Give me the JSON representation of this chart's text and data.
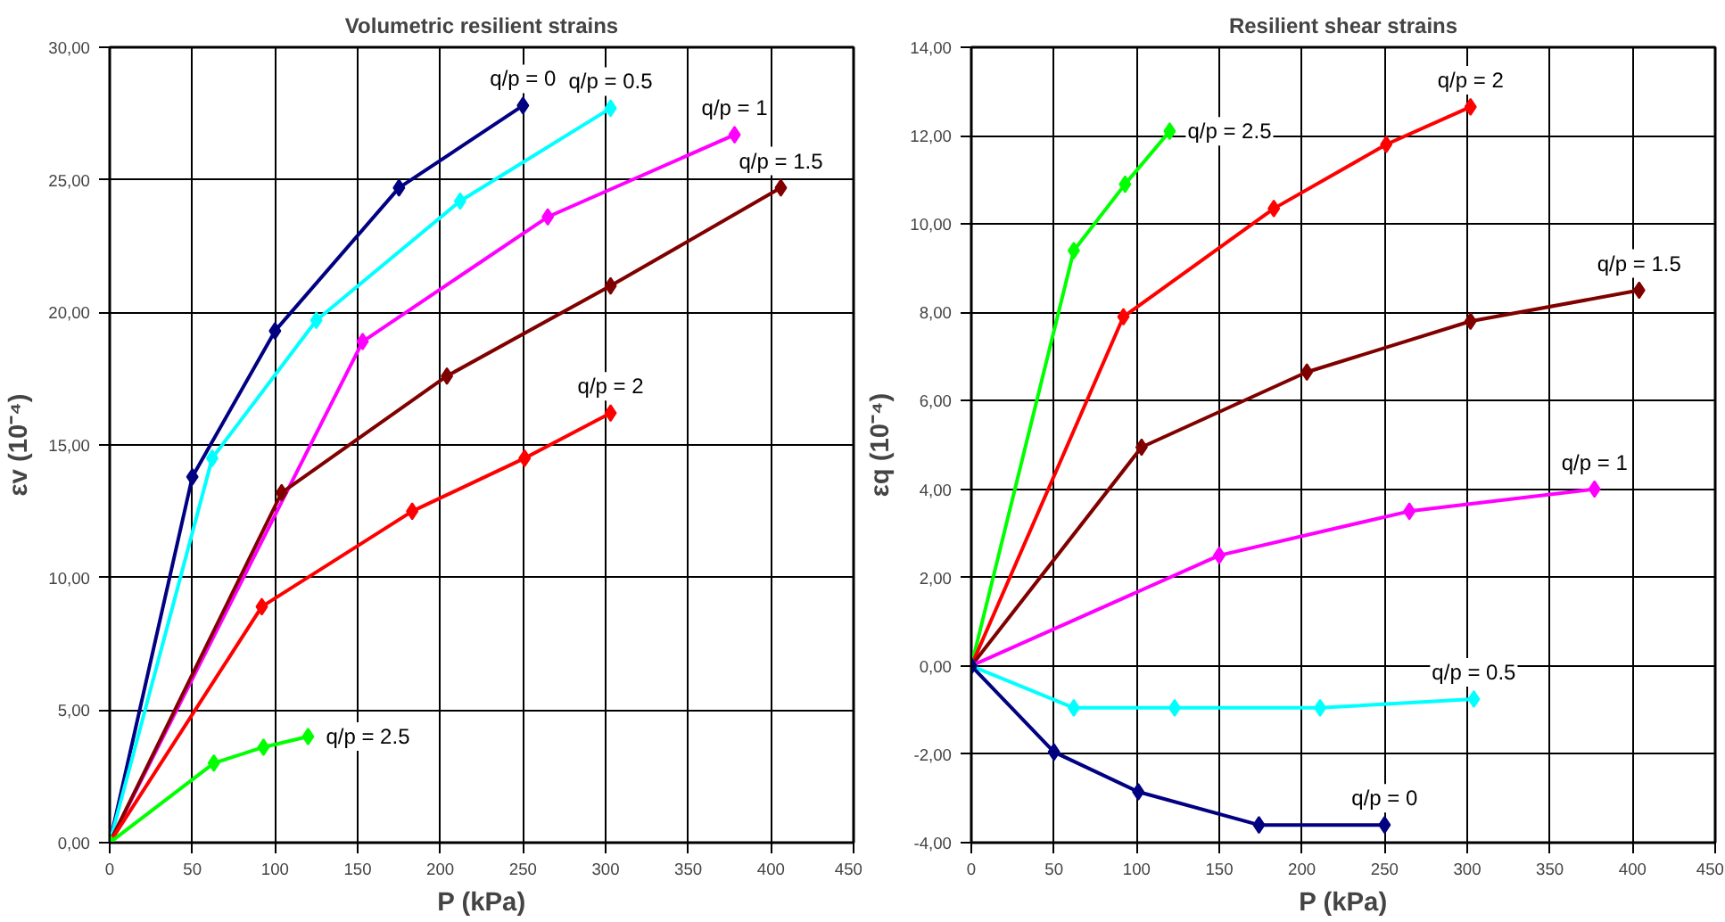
{
  "chart_data": [
    {
      "type": "line",
      "title": "Volumetric resilient strains",
      "xlabel": "P (kPa)",
      "ylabel": "εv (10⁻⁴)",
      "marker": "diamond",
      "grid": true,
      "legend": false,
      "xlim": [
        0,
        450
      ],
      "xticks": [
        0,
        50,
        100,
        150,
        200,
        250,
        300,
        350,
        400,
        450
      ],
      "ylim": [
        0,
        30
      ],
      "yticks": [
        {
          "value": 0,
          "label": "0,00"
        },
        {
          "value": 5,
          "label": "5,00"
        },
        {
          "value": 10,
          "label": "10,00"
        },
        {
          "value": 15,
          "label": "15,00"
        },
        {
          "value": 20,
          "label": "20,00"
        },
        {
          "value": 25,
          "label": "25,00"
        },
        {
          "value": 30,
          "label": "30,00"
        }
      ],
      "series": [
        {
          "name": "q/p = 0",
          "color": "#000080",
          "x": [
            0,
            50,
            100,
            175,
            250
          ],
          "values": [
            0,
            13.8,
            19.3,
            24.7,
            27.8
          ]
        },
        {
          "name": "q/p = 0.5",
          "color": "#00ffff",
          "x": [
            0,
            62,
            125,
            212,
            303
          ],
          "values": [
            0,
            14.5,
            19.7,
            24.2,
            27.7
          ]
        },
        {
          "name": "q/p = 1",
          "color": "#ff00ff",
          "x": [
            0,
            153,
            265,
            378
          ],
          "values": [
            0,
            18.9,
            23.6,
            26.7
          ]
        },
        {
          "name": "q/p = 1.5",
          "color": "#800000",
          "x": [
            0,
            104,
            204,
            303,
            406
          ],
          "values": [
            0,
            13.2,
            17.6,
            21.0,
            24.7
          ]
        },
        {
          "name": "q/p = 2",
          "color": "#ff0000",
          "x": [
            0,
            92,
            183,
            251,
            303
          ],
          "values": [
            0,
            8.9,
            12.5,
            14.5,
            16.2
          ]
        },
        {
          "name": "q/p = 2.5",
          "color": "#00ff00",
          "x": [
            0,
            63,
            93,
            120
          ],
          "values": [
            0,
            3.0,
            3.6,
            4.0
          ]
        }
      ]
    },
    {
      "type": "line",
      "title": "Resilient shear strains",
      "xlabel": "P (kPa)",
      "ylabel": "εq (10⁻⁴)",
      "marker": "diamond",
      "grid": true,
      "legend": false,
      "xlim": [
        0,
        450
      ],
      "xticks": [
        0,
        50,
        100,
        150,
        200,
        250,
        300,
        350,
        400,
        450
      ],
      "ylim": [
        -4,
        14
      ],
      "yticks": [
        {
          "value": -4,
          "label": "-4,00"
        },
        {
          "value": -2,
          "label": "-2,00"
        },
        {
          "value": 0,
          "label": "0,00"
        },
        {
          "value": 2,
          "label": "2,00"
        },
        {
          "value": 4,
          "label": "4,00"
        },
        {
          "value": 6,
          "label": "6,00"
        },
        {
          "value": 8,
          "label": "8,00"
        },
        {
          "value": 10,
          "label": "10,00"
        },
        {
          "value": 12,
          "label": "12,00"
        },
        {
          "value": 14,
          "label": "14,00"
        }
      ],
      "series": [
        {
          "name": "q/p = 2.5",
          "color": "#00ff00",
          "x": [
            0,
            62,
            93,
            120
          ],
          "values": [
            0,
            9.4,
            10.9,
            12.1
          ]
        },
        {
          "name": "q/p = 2",
          "color": "#ff0000",
          "x": [
            0,
            92,
            183,
            251,
            302
          ],
          "values": [
            0,
            7.9,
            10.35,
            11.8,
            12.65
          ]
        },
        {
          "name": "q/p = 1.5",
          "color": "#800000",
          "x": [
            0,
            103,
            203,
            302,
            404
          ],
          "values": [
            0,
            4.95,
            6.65,
            7.8,
            8.5
          ]
        },
        {
          "name": "q/p = 1",
          "color": "#ff00ff",
          "x": [
            0,
            150,
            265,
            377
          ],
          "values": [
            0,
            2.5,
            3.5,
            4.0
          ]
        },
        {
          "name": "q/p = 0.5",
          "color": "#00ffff",
          "x": [
            0,
            62,
            123,
            211,
            304
          ],
          "values": [
            0,
            -0.95,
            -0.95,
            -0.95,
            -0.75
          ]
        },
        {
          "name": "q/p = 0",
          "color": "#000080",
          "x": [
            0,
            50,
            101,
            174,
            250
          ],
          "values": [
            0,
            -1.95,
            -2.85,
            -3.6,
            -3.6
          ]
        }
      ]
    }
  ]
}
